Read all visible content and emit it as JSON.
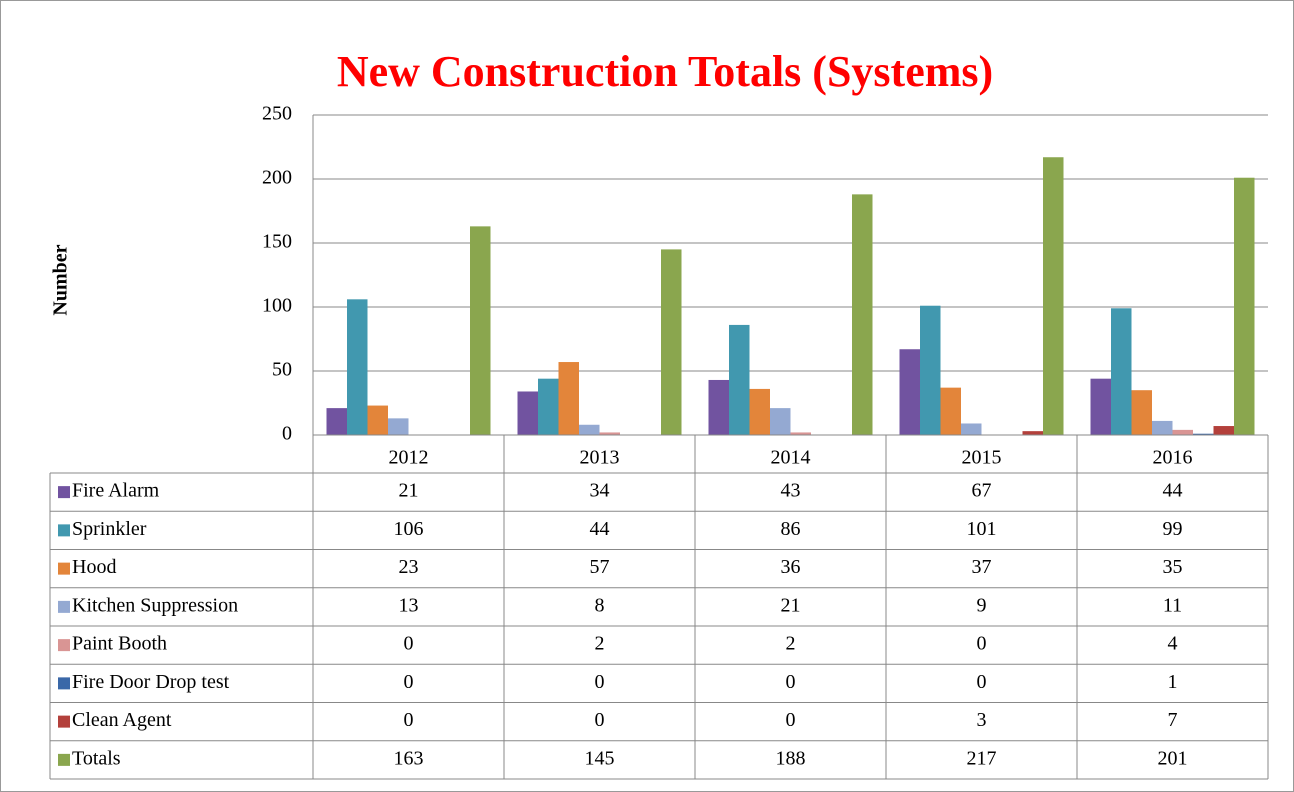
{
  "chart_data": {
    "type": "bar",
    "title": "New Construction Totals (Systems)",
    "y_label": "Number",
    "categories": [
      "2012",
      "2013",
      "2014",
      "2015",
      "2016"
    ],
    "series": [
      {
        "name": "Fire Alarm",
        "color": "#7153a0",
        "values": [
          21,
          34,
          43,
          67,
          44
        ]
      },
      {
        "name": "Sprinkler",
        "color": "#4198af",
        "values": [
          106,
          44,
          86,
          101,
          99
        ]
      },
      {
        "name": "Hood",
        "color": "#e3853a",
        "values": [
          23,
          57,
          36,
          37,
          35
        ]
      },
      {
        "name": "Kitchen Suppression",
        "color": "#94a9d2",
        "values": [
          13,
          8,
          21,
          9,
          11
        ]
      },
      {
        "name": "Paint Booth",
        "color": "#d99594",
        "values": [
          0,
          2,
          2,
          0,
          4
        ]
      },
      {
        "name": "Fire Door Drop test",
        "color": "#3a68a8",
        "values": [
          0,
          0,
          0,
          0,
          1
        ]
      },
      {
        "name": "Clean Agent",
        "color": "#b3403b",
        "values": [
          0,
          0,
          0,
          3,
          7
        ]
      },
      {
        "name": "Totals",
        "color": "#8aa64e",
        "values": [
          163,
          145,
          188,
          217,
          201
        ]
      }
    ],
    "ylim": [
      0,
      250
    ],
    "yticks": [
      0,
      50,
      100,
      150,
      200,
      250
    ],
    "grid": true,
    "data_table": true
  }
}
